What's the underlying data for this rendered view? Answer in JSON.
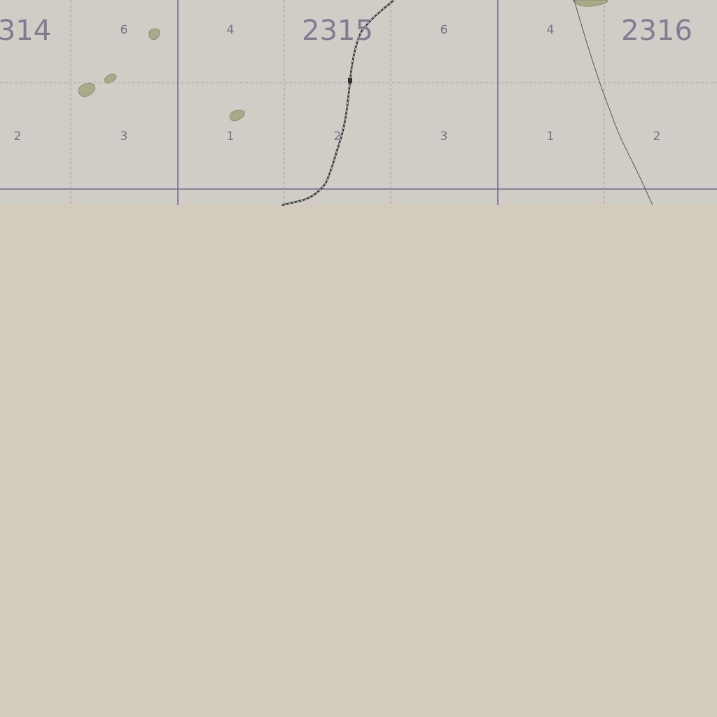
{
  "map": {
    "colors": {
      "grid_area": "#cfcdc6",
      "background": "#d3ccbc",
      "major_grid": "#8c7f9c",
      "minor_grid": "#b49a9a",
      "label": "#857a93",
      "vegetation": "#a8aa8a",
      "vegetation_stroke": "#7f8466",
      "track": "#333333",
      "thin_line": "#555555"
    },
    "sheets": [
      {
        "label": "314"
      },
      {
        "label": "2315"
      },
      {
        "label": "2316"
      }
    ],
    "subdivisions": [
      {
        "label": "6"
      },
      {
        "label": "4"
      },
      {
        "label": "6"
      },
      {
        "label": "4"
      },
      {
        "label": "2"
      },
      {
        "label": "3"
      },
      {
        "label": "1"
      },
      {
        "label": "2"
      },
      {
        "label": "3"
      },
      {
        "label": "1"
      },
      {
        "label": "2"
      }
    ],
    "icons": {
      "vegetation": "vegetation-patch-icon",
      "track_marker": "square-marker-icon"
    }
  }
}
